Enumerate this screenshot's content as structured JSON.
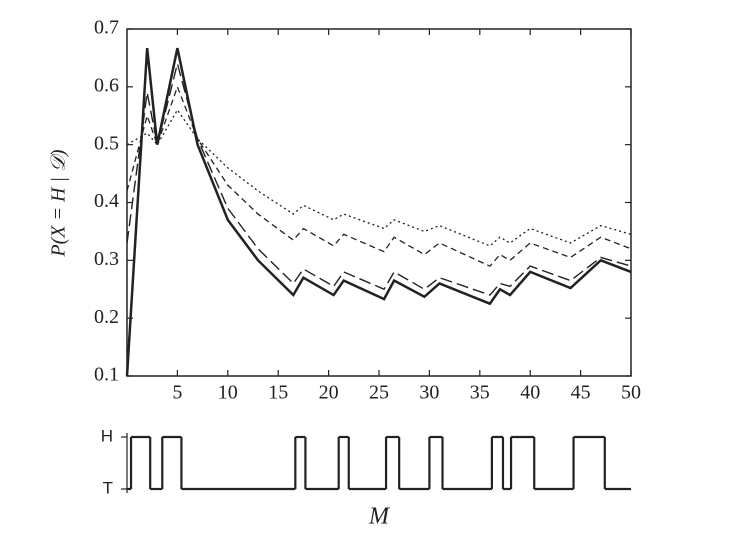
{
  "chart_data": [
    {
      "type": "line",
      "y_label": "P(X = H | 𝒟)",
      "x": [
        0,
        2,
        3,
        5,
        7,
        10,
        13,
        16.5,
        17.5,
        20.5,
        21.5,
        25.5,
        26.5,
        29.5,
        31,
        36,
        37,
        38,
        40,
        44,
        47,
        50
      ],
      "series": [
        {
          "color": "#222222",
          "dash": "solid",
          "values": [
            0.1,
            0.667,
            0.5,
            0.667,
            0.5,
            0.37,
            0.3,
            0.24,
            0.27,
            0.24,
            0.265,
            0.233,
            0.265,
            0.237,
            0.26,
            0.225,
            0.25,
            0.24,
            0.28,
            0.252,
            0.3,
            0.28
          ]
        },
        {
          "color": "#222222",
          "dash": "long-dash",
          "values": [
            0.33,
            0.59,
            0.5,
            0.64,
            0.51,
            0.39,
            0.32,
            0.26,
            0.285,
            0.255,
            0.28,
            0.25,
            0.28,
            0.25,
            0.27,
            0.24,
            0.26,
            0.255,
            0.29,
            0.265,
            0.305,
            0.29
          ]
        },
        {
          "color": "#222222",
          "dash": "short-dash",
          "values": [
            0.42,
            0.55,
            0.5,
            0.6,
            0.51,
            0.43,
            0.38,
            0.335,
            0.355,
            0.325,
            0.345,
            0.315,
            0.34,
            0.31,
            0.33,
            0.29,
            0.31,
            0.3,
            0.33,
            0.305,
            0.34,
            0.32
          ]
        },
        {
          "color": "#222222",
          "dash": "dotted",
          "values": [
            0.5,
            0.52,
            0.5,
            0.56,
            0.51,
            0.46,
            0.42,
            0.38,
            0.395,
            0.37,
            0.38,
            0.355,
            0.37,
            0.35,
            0.36,
            0.325,
            0.34,
            0.33,
            0.355,
            0.33,
            0.36,
            0.345
          ]
        }
      ],
      "xlim": [
        0,
        50
      ],
      "xticks": [
        5,
        10,
        15,
        20,
        25,
        30,
        35,
        40,
        45,
        50
      ],
      "ylim": [
        0.1,
        0.7
      ],
      "yticks": [
        0.1,
        0.2,
        0.3,
        0.4,
        0.5,
        0.6,
        0.7
      ]
    },
    {
      "type": "step",
      "x_label": "M",
      "x": [
        0,
        0.4,
        2.3,
        3.5,
        5.4,
        16.7,
        17.7,
        21,
        22,
        25.7,
        27,
        30,
        31.3,
        36.2,
        37.3,
        38.1,
        40.4,
        44.3,
        47.4
      ],
      "values": [
        0,
        1,
        0,
        1,
        0,
        1,
        0,
        1,
        0,
        1,
        0,
        1,
        0,
        1,
        0,
        1,
        0,
        1,
        0
      ],
      "color": "#222222",
      "xlim": [
        0,
        50
      ],
      "ylim": [
        0,
        1
      ],
      "yticks": [
        {
          "value": 0,
          "label": "T"
        },
        {
          "value": 1,
          "label": "H"
        }
      ]
    }
  ]
}
